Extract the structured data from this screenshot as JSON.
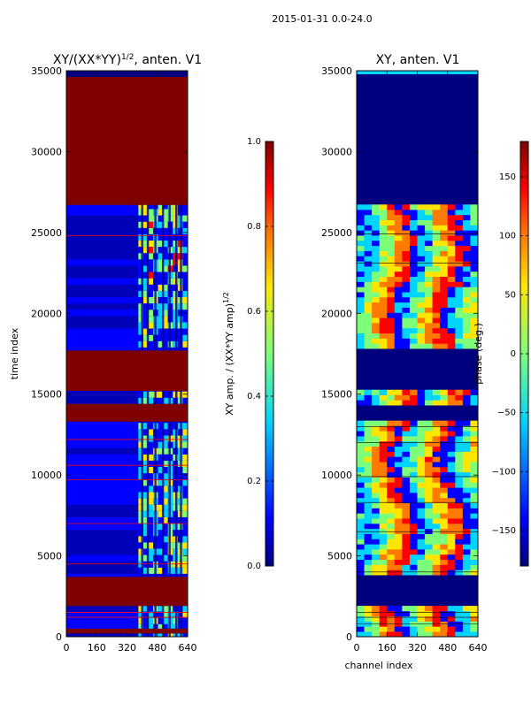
{
  "suptitle": "2015-01-31 0.0-24.0",
  "colors": {
    "jet_dark_blue": "#00007f",
    "jet_blue": "#0000ff",
    "jet_cyan": "#00d4ff",
    "jet_green": "#7dff7a",
    "jet_yellow": "#ffe600",
    "jet_orange": "#ff7a00",
    "jet_red": "#ff0000",
    "jet_dark_red": "#7f0000"
  },
  "chart_data": [
    {
      "type": "heatmap",
      "title": "XY/(XX*YY)",
      "title_exponent": "1/2",
      "title_suffix": ", anten. V1",
      "xlabel": "",
      "ylabel": "time index",
      "xlim": [
        0,
        640
      ],
      "ylim": [
        0,
        35000
      ],
      "x_ticks": [
        0,
        160,
        320,
        480,
        640
      ],
      "y_ticks": [
        0,
        5000,
        10000,
        15000,
        20000,
        25000,
        30000,
        35000
      ],
      "fill_blocks": [
        {
          "y0": 26700,
          "y1": 35000,
          "level": "saturated"
        },
        {
          "y0": 15200,
          "y1": 17700,
          "level": "saturated"
        },
        {
          "y0": 13300,
          "y1": 14400,
          "level": "saturated"
        },
        {
          "y0": 1900,
          "y1": 3700,
          "level": "saturated"
        },
        {
          "y0": 200,
          "y1": 500,
          "level": "saturated"
        }
      ],
      "hot_columns": [
        400,
        430,
        470,
        510,
        545,
        580,
        605
      ],
      "colorbar": {
        "label": "XY amp. / (XX*YY amp)",
        "label_exponent": "1/2",
        "range": [
          0.0,
          1.0
        ],
        "ticks": [
          "0.0",
          "0.2",
          "0.4",
          "0.6",
          "0.8",
          "1.0"
        ]
      }
    },
    {
      "type": "heatmap",
      "title": "XY, anten. V1",
      "xlabel": "channel index",
      "ylabel": "",
      "xlim": [
        0,
        640
      ],
      "ylim": [
        0,
        35000
      ],
      "x_ticks": [
        0,
        160,
        320,
        480,
        640
      ],
      "y_ticks": [
        0,
        5000,
        10000,
        15000,
        20000,
        25000,
        30000,
        35000
      ],
      "empty_blocks": [
        {
          "y0": 26700,
          "y1": 35000
        },
        {
          "y0": 15200,
          "y1": 17700
        },
        {
          "y0": 13300,
          "y1": 14400
        },
        {
          "y0": 1900,
          "y1": 3700
        }
      ],
      "colorbar": {
        "label": "phase (deg.)",
        "range": [
          -180,
          180
        ],
        "ticks": [
          "−150",
          "−100",
          "−50",
          "0",
          "50",
          "100",
          "150"
        ]
      }
    }
  ]
}
